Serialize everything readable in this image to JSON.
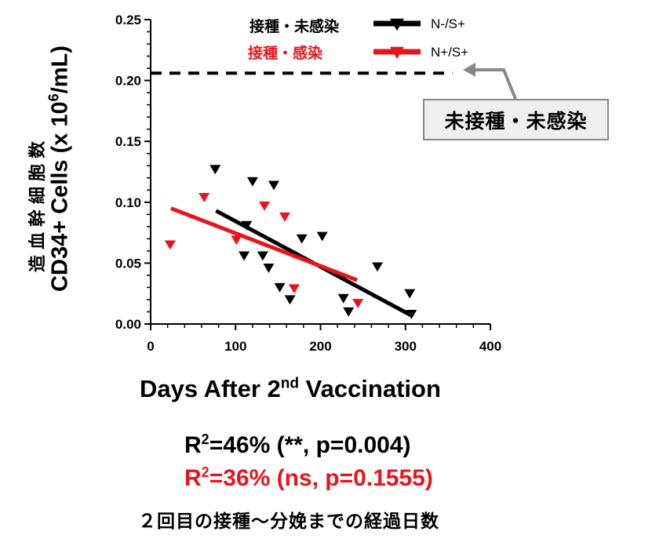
{
  "chart_data": {
    "type": "scatter",
    "xlabel": "Days After 2nd Vaccination",
    "xlabel_parts": [
      "Days After 2",
      "nd",
      " Vaccination"
    ],
    "ylabel": "CD34+ Cells (x 10^6/mL)",
    "ylabel_parts": [
      "CD34+ Cells (x 10",
      "6",
      "/mL)"
    ],
    "ylabel_jp": "造血幹細胞数",
    "xlim": [
      0,
      400
    ],
    "ylim": [
      0,
      0.25
    ],
    "xticks": [
      0,
      100,
      200,
      300,
      400
    ],
    "yticks": [
      "0.00",
      "0.05",
      "0.10",
      "0.15",
      "0.20",
      "0.25"
    ],
    "grid": false,
    "legend_placement": "top",
    "series": [
      {
        "name": "N-/S+",
        "label_jp": "接種・未感染",
        "color": "#000000",
        "marker": "triangle-down",
        "points": [
          [
            76,
            0.127
          ],
          [
            120,
            0.117
          ],
          [
            145,
            0.114
          ],
          [
            113,
            0.081
          ],
          [
            110,
            0.056
          ],
          [
            132,
            0.056
          ],
          [
            139,
            0.046
          ],
          [
            152,
            0.03
          ],
          [
            178,
            0.07
          ],
          [
            202,
            0.072
          ],
          [
            164,
            0.02
          ],
          [
            227,
            0.021
          ],
          [
            233,
            0.01
          ],
          [
            267,
            0.047
          ],
          [
            305,
            0.025
          ],
          [
            307,
            0.008
          ]
        ],
        "fit": [
          [
            77,
            0.093
          ],
          [
            307,
            0.007
          ]
        ]
      },
      {
        "name": "N+/S+",
        "label_jp": "接種・感染",
        "color": "#e8141b",
        "marker": "triangle-down",
        "points": [
          [
            23,
            0.065
          ],
          [
            63,
            0.104
          ],
          [
            134,
            0.097
          ],
          [
            158,
            0.088
          ],
          [
            101,
            0.069
          ],
          [
            169,
            0.029
          ],
          [
            244,
            0.017
          ]
        ],
        "fit": [
          [
            24,
            0.095
          ],
          [
            243,
            0.036
          ]
        ]
      }
    ],
    "reference_line": {
      "y": 0.206,
      "x_range": [
        0,
        355
      ],
      "style": "dashed",
      "label": "未接種・未感染"
    },
    "annotations": {
      "stat_black": [
        "R",
        "2",
        "=46% (**,  p=0.004)"
      ],
      "stat_red": [
        "R",
        "2",
        "=36% (ns, p=0.1555)"
      ],
      "caption": "２回目の接種～分娩までの経過日数"
    }
  }
}
